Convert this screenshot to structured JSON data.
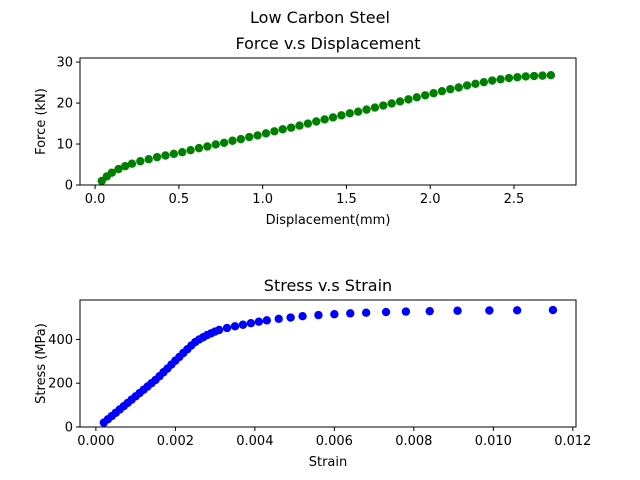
{
  "figure": {
    "suptitle": "Low Carbon Steel"
  },
  "chart_data": [
    {
      "type": "scatter",
      "title": "Force v.s Displacement",
      "xlabel": "Displacement(mm)",
      "ylabel": "Force (kN)",
      "xlim": [
        -0.09,
        2.87
      ],
      "ylim": [
        0,
        31
      ],
      "xticks": [
        0.0,
        0.5,
        1.0,
        1.5,
        2.0,
        2.5
      ],
      "xtick_labels": [
        "0.0",
        "0.5",
        "1.0",
        "1.5",
        "2.0",
        "2.5"
      ],
      "yticks": [
        0,
        10,
        20,
        30
      ],
      "ytick_labels": [
        "0",
        "10",
        "20",
        "30"
      ],
      "grid": false,
      "color": "#008000",
      "series": [
        {
          "x": [
            0.04,
            0.07,
            0.1,
            0.14,
            0.18,
            0.22,
            0.27,
            0.32,
            0.37,
            0.42,
            0.47,
            0.52,
            0.57,
            0.62,
            0.67,
            0.72,
            0.77,
            0.82,
            0.87,
            0.92,
            0.97,
            1.02,
            1.07,
            1.12,
            1.17,
            1.22,
            1.27,
            1.32,
            1.37,
            1.42,
            1.47,
            1.52,
            1.57,
            1.62,
            1.67,
            1.72,
            1.77,
            1.82,
            1.87,
            1.92,
            1.97,
            2.02,
            2.07,
            2.12,
            2.17,
            2.22,
            2.27,
            2.32,
            2.37,
            2.42,
            2.47,
            2.52,
            2.57,
            2.62,
            2.67,
            2.72
          ],
          "y": [
            1.0,
            2.1,
            3.0,
            3.9,
            4.6,
            5.2,
            5.8,
            6.3,
            6.8,
            7.2,
            7.6,
            8.0,
            8.5,
            9.0,
            9.4,
            9.9,
            10.3,
            10.8,
            11.2,
            11.7,
            12.1,
            12.6,
            13.1,
            13.6,
            14.0,
            14.5,
            15.0,
            15.5,
            16.0,
            16.5,
            17.0,
            17.5,
            17.9,
            18.4,
            18.9,
            19.4,
            19.9,
            20.4,
            20.9,
            21.4,
            21.9,
            22.4,
            22.9,
            23.4,
            23.8,
            24.3,
            24.7,
            25.1,
            25.5,
            25.8,
            26.1,
            26.3,
            26.5,
            26.6,
            26.7,
            26.8
          ]
        }
      ]
    },
    {
      "type": "scatter",
      "title": "Stress v.s Strain",
      "xlabel": "Strain",
      "ylabel": "Stress (MPa)",
      "xlim": [
        -0.0004,
        0.01208
      ],
      "ylim": [
        0,
        580
      ],
      "xticks": [
        0.0,
        0.002,
        0.004,
        0.006,
        0.008,
        0.01,
        0.012
      ],
      "xtick_labels": [
        "0.000",
        "0.002",
        "0.004",
        "0.006",
        "0.008",
        "0.010",
        "0.012"
      ],
      "yticks": [
        0,
        200,
        400
      ],
      "ytick_labels": [
        "0",
        "200",
        "400"
      ],
      "grid": false,
      "color": "#0000ff",
      "series": [
        {
          "x": [
            0.0002,
            0.0003,
            0.0004,
            0.0005,
            0.0006,
            0.0007,
            0.0008,
            0.0009,
            0.001,
            0.0011,
            0.0012,
            0.0013,
            0.0014,
            0.0015,
            0.0016,
            0.0017,
            0.0018,
            0.0019,
            0.002,
            0.0021,
            0.0022,
            0.0023,
            0.0024,
            0.0025,
            0.0026,
            0.0027,
            0.0028,
            0.0029,
            0.003,
            0.0031,
            0.0033,
            0.0035,
            0.0037,
            0.0039,
            0.0041,
            0.0043,
            0.0046,
            0.0049,
            0.0052,
            0.0056,
            0.006,
            0.0064,
            0.0068,
            0.0073,
            0.0078,
            0.0084,
            0.0091,
            0.0099,
            0.0106,
            0.0115
          ],
          "y": [
            20,
            35,
            50,
            65,
            80,
            95,
            110,
            125,
            140,
            155,
            170,
            185,
            200,
            215,
            232,
            250,
            267,
            285,
            303,
            320,
            338,
            355,
            372,
            388,
            400,
            410,
            420,
            428,
            436,
            443,
            452,
            460,
            467,
            474,
            481,
            487,
            494,
            500,
            506,
            511,
            515,
            519,
            522,
            525,
            527,
            529,
            531,
            532,
            533,
            534
          ]
        }
      ]
    }
  ]
}
